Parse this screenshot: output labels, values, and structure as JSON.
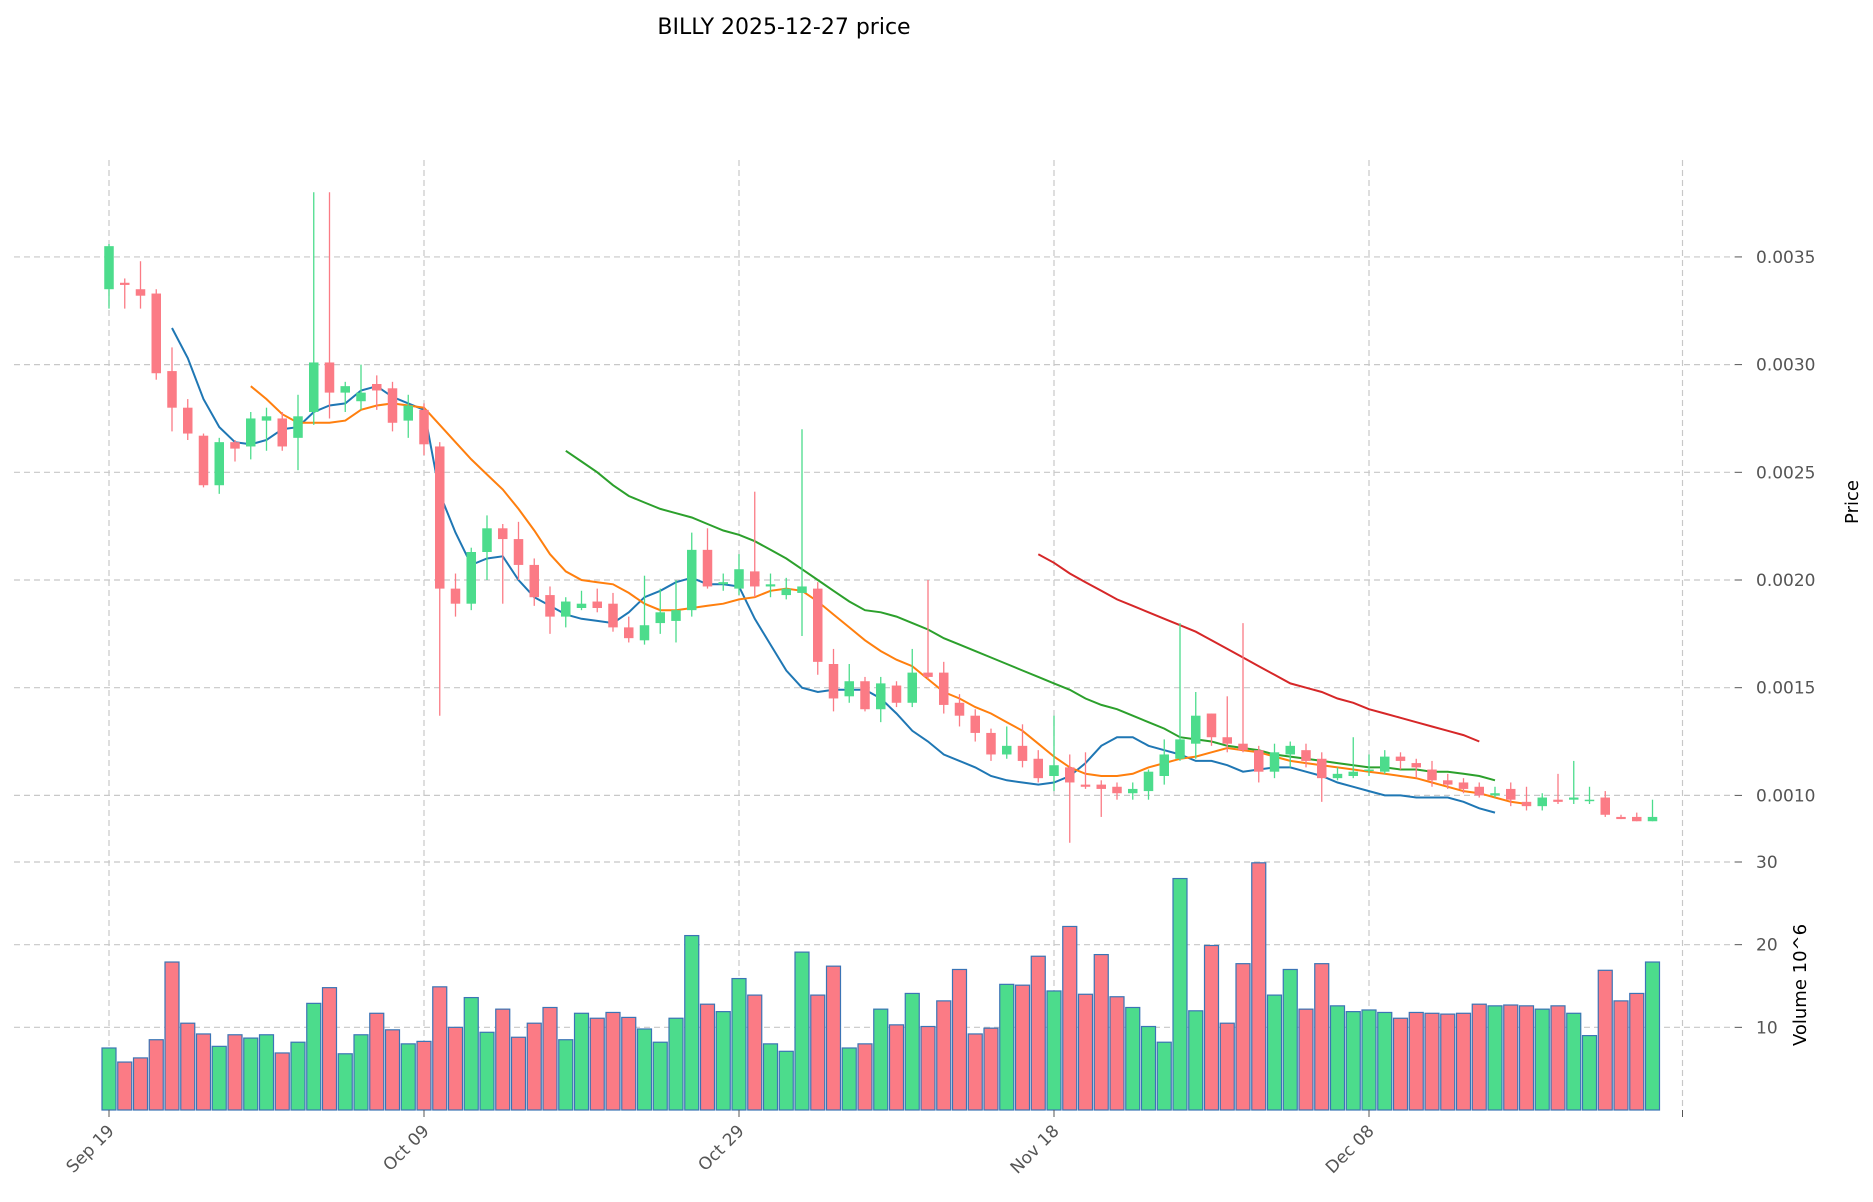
{
  "chart_data": {
    "type": "candlestick",
    "title": "BILLY  2025-12-27  price",
    "price_ylabel": "Price",
    "volume_ylabel": "Volume  10^6",
    "price_ylim": [
      0.0007,
      0.00395
    ],
    "volume_ylim": [
      0,
      30
    ],
    "price_ticks": [
      0.001,
      0.0015,
      0.002,
      0.0025,
      0.003,
      0.0035
    ],
    "price_tick_labels": [
      "0.0010",
      "0.0015",
      "0.0020",
      "0.0025",
      "0.0030",
      "0.0035"
    ],
    "volume_ticks": [
      10,
      20,
      30
    ],
    "volume_tick_labels": [
      "10",
      "20",
      "30"
    ],
    "x_ticks": [
      0,
      20,
      40,
      60,
      80
    ],
    "x_tick_labels": [
      "Sep 19",
      "Oct 09",
      "Oct 29",
      "Nov 18",
      "Dec 08"
    ],
    "colors": {
      "up": "#4cdc8c",
      "down": "#fb7b85",
      "edge": "#3b74b5",
      "ma_short": "#1f77b4",
      "ma_mid": "#ff7f0e",
      "ma_long": "#2ca02c",
      "ma_xlong": "#d62728"
    },
    "candles": [
      [
        0.00335,
        0.00356,
        0.00326,
        0.00355,
        7.5
      ],
      [
        0.00338,
        0.0034,
        0.00326,
        0.00337,
        5.8
      ],
      [
        0.00335,
        0.00348,
        0.00326,
        0.00332,
        6.3
      ],
      [
        0.00333,
        0.00335,
        0.00293,
        0.00296,
        8.5
      ],
      [
        0.00297,
        0.00308,
        0.00269,
        0.0028,
        17.9
      ],
      [
        0.0028,
        0.00284,
        0.00265,
        0.00268,
        10.5
      ],
      [
        0.00267,
        0.00268,
        0.00243,
        0.00244,
        9.2
      ],
      [
        0.00244,
        0.00266,
        0.0024,
        0.00264,
        7.7
      ],
      [
        0.00264,
        0.00265,
        0.00255,
        0.00261,
        9.1
      ],
      [
        0.00262,
        0.00278,
        0.00256,
        0.00275,
        8.7
      ],
      [
        0.00274,
        0.0028,
        0.0026,
        0.00276,
        9.1
      ],
      [
        0.00275,
        0.00278,
        0.0026,
        0.00262,
        6.9
      ],
      [
        0.00266,
        0.00286,
        0.00251,
        0.00276,
        8.2
      ],
      [
        0.00278,
        0.0038,
        0.00272,
        0.00301,
        12.9
      ],
      [
        0.00301,
        0.0038,
        0.00275,
        0.00287,
        14.8
      ],
      [
        0.00287,
        0.00292,
        0.00278,
        0.0029,
        6.8
      ],
      [
        0.00283,
        0.003,
        0.00279,
        0.00287,
        9.1
      ],
      [
        0.00291,
        0.00295,
        0.00279,
        0.00288,
        11.7
      ],
      [
        0.00289,
        0.00292,
        0.00269,
        0.00273,
        9.7
      ],
      [
        0.00274,
        0.00286,
        0.00266,
        0.00281,
        8.0
      ],
      [
        0.00279,
        0.00282,
        0.00258,
        0.00263,
        8.3
      ],
      [
        0.00262,
        0.00264,
        0.00137,
        0.00196,
        14.9
      ],
      [
        0.00196,
        0.00203,
        0.00183,
        0.00189,
        10.0
      ],
      [
        0.00189,
        0.00215,
        0.00186,
        0.00213,
        13.6
      ],
      [
        0.00213,
        0.0023,
        0.002,
        0.00224,
        9.4
      ],
      [
        0.00224,
        0.00226,
        0.00189,
        0.00219,
        12.2
      ],
      [
        0.00219,
        0.00227,
        0.002,
        0.00207,
        8.8
      ],
      [
        0.00207,
        0.0021,
        0.00188,
        0.00192,
        10.5
      ],
      [
        0.00193,
        0.00197,
        0.00175,
        0.00183,
        12.4
      ],
      [
        0.00183,
        0.00192,
        0.00178,
        0.0019,
        8.5
      ],
      [
        0.00187,
        0.00195,
        0.00186,
        0.00189,
        11.7
      ],
      [
        0.0019,
        0.00196,
        0.00185,
        0.00187,
        11.1
      ],
      [
        0.00189,
        0.00194,
        0.00176,
        0.00178,
        11.8
      ],
      [
        0.00178,
        0.00183,
        0.00171,
        0.00173,
        11.2
      ],
      [
        0.00172,
        0.00202,
        0.0017,
        0.00179,
        9.8
      ],
      [
        0.0018,
        0.00196,
        0.00175,
        0.00185,
        8.2
      ],
      [
        0.00181,
        0.002,
        0.00171,
        0.00186,
        11.1
      ],
      [
        0.00186,
        0.00222,
        0.00183,
        0.00214,
        21.1
      ],
      [
        0.00214,
        0.00224,
        0.00196,
        0.00197,
        12.8
      ],
      [
        0.00198,
        0.00203,
        0.00195,
        0.00199,
        11.9
      ],
      [
        0.00196,
        0.00212,
        0.00193,
        0.00205,
        15.9
      ],
      [
        0.00204,
        0.00241,
        0.00192,
        0.00197,
        13.9
      ],
      [
        0.00197,
        0.00203,
        0.00192,
        0.00198,
        8.0
      ],
      [
        0.00193,
        0.00201,
        0.00191,
        0.00196,
        7.1
      ],
      [
        0.00194,
        0.0027,
        0.00174,
        0.00197,
        19.1
      ],
      [
        0.00196,
        0.00199,
        0.00156,
        0.00162,
        13.9
      ],
      [
        0.00161,
        0.00168,
        0.00139,
        0.00145,
        17.4
      ],
      [
        0.00146,
        0.00161,
        0.00143,
        0.00153,
        7.5
      ],
      [
        0.00153,
        0.00155,
        0.00139,
        0.0014,
        8.0
      ],
      [
        0.0014,
        0.00155,
        0.00134,
        0.00152,
        12.2
      ],
      [
        0.00151,
        0.00153,
        0.00141,
        0.00143,
        10.3
      ],
      [
        0.00143,
        0.00168,
        0.00141,
        0.00157,
        14.1
      ],
      [
        0.00157,
        0.002,
        0.00154,
        0.00155,
        10.1
      ],
      [
        0.00157,
        0.00162,
        0.00138,
        0.00142,
        13.2
      ],
      [
        0.00143,
        0.00147,
        0.00132,
        0.00137,
        17.0
      ],
      [
        0.00137,
        0.0014,
        0.00125,
        0.00129,
        9.2
      ],
      [
        0.00129,
        0.00131,
        0.00116,
        0.00119,
        9.9
      ],
      [
        0.00119,
        0.00132,
        0.00117,
        0.00123,
        15.2
      ],
      [
        0.00123,
        0.00133,
        0.00113,
        0.00116,
        15.1
      ],
      [
        0.00117,
        0.00121,
        0.00106,
        0.00108,
        18.6
      ],
      [
        0.00109,
        0.00137,
        0.00102,
        0.00114,
        14.4
      ],
      [
        0.00113,
        0.00119,
        0.00078,
        0.00106,
        22.2
      ],
      [
        0.00105,
        0.0012,
        0.00103,
        0.00104,
        14.0
      ],
      [
        0.00105,
        0.00107,
        0.0009,
        0.00103,
        18.8
      ],
      [
        0.00104,
        0.00106,
        0.00098,
        0.00101,
        13.7
      ],
      [
        0.00101,
        0.00106,
        0.00098,
        0.00103,
        12.4
      ],
      [
        0.00102,
        0.00112,
        0.00098,
        0.00111,
        10.1
      ],
      [
        0.00109,
        0.00126,
        0.00105,
        0.00119,
        8.2
      ],
      [
        0.00117,
        0.0018,
        0.00116,
        0.00126,
        28.0
      ],
      [
        0.00124,
        0.00148,
        0.00117,
        0.00137,
        12.0
      ],
      [
        0.00138,
        0.00138,
        0.00123,
        0.00127,
        19.9
      ],
      [
        0.00127,
        0.00146,
        0.0012,
        0.00124,
        10.5
      ],
      [
        0.00124,
        0.0018,
        0.0012,
        0.00121,
        17.7
      ],
      [
        0.00121,
        0.00123,
        0.00106,
        0.00111,
        29.9
      ],
      [
        0.00111,
        0.00124,
        0.00108,
        0.0012,
        13.9
      ],
      [
        0.00119,
        0.00125,
        0.00113,
        0.00123,
        17.0
      ],
      [
        0.00121,
        0.00124,
        0.00113,
        0.00116,
        12.2
      ],
      [
        0.00117,
        0.0012,
        0.00097,
        0.00108,
        17.7
      ],
      [
        0.00108,
        0.00113,
        0.00107,
        0.0011,
        12.6
      ],
      [
        0.00109,
        0.00127,
        0.00108,
        0.00111,
        11.9
      ],
      [
        0.00112,
        0.00119,
        0.00109,
        0.00112,
        12.1
      ],
      [
        0.00111,
        0.00121,
        0.0011,
        0.00118,
        11.8
      ],
      [
        0.00118,
        0.0012,
        0.00112,
        0.00116,
        11.1
      ],
      [
        0.00115,
        0.00117,
        0.00108,
        0.00113,
        11.8
      ],
      [
        0.00112,
        0.00116,
        0.00104,
        0.00107,
        11.7
      ],
      [
        0.00107,
        0.0011,
        0.00103,
        0.00105,
        11.6
      ],
      [
        0.00106,
        0.00108,
        0.00101,
        0.00103,
        11.7
      ],
      [
        0.00104,
        0.00106,
        0.00099,
        0.001,
        12.8
      ],
      [
        0.001,
        0.00104,
        0.00099,
        0.00101,
        12.6
      ],
      [
        0.00103,
        0.00106,
        0.00095,
        0.00098,
        12.7
      ],
      [
        0.00097,
        0.00104,
        0.00093,
        0.00095,
        12.6
      ],
      [
        0.00095,
        0.00101,
        0.00093,
        0.00099,
        12.2
      ],
      [
        0.00098,
        0.0011,
        0.00096,
        0.00097,
        12.6
      ],
      [
        0.00098,
        0.00116,
        0.00096,
        0.00099,
        11.7
      ],
      [
        0.00098,
        0.00104,
        0.00096,
        0.00098,
        9.0
      ],
      [
        0.00099,
        0.00102,
        0.0009,
        0.00091,
        16.9
      ],
      [
        0.0009,
        0.00091,
        0.00089,
        0.00089,
        13.2
      ],
      [
        0.0009,
        0.00092,
        0.00088,
        0.00088,
        14.1
      ],
      [
        0.00088,
        0.00098,
        0.00088,
        0.0009,
        17.9
      ]
    ],
    "ma_lines": [
      {
        "name": "ma_short",
        "start": 4,
        "values": [
          0.00317,
          0.00303,
          0.00284,
          0.00271,
          0.00264,
          0.00263,
          0.00265,
          0.0027,
          0.00271,
          0.00278,
          0.00281,
          0.00282,
          0.00288,
          0.0029,
          0.00285,
          0.00282,
          0.00279,
          0.0024,
          0.00222,
          0.00207,
          0.0021,
          0.00211,
          0.002,
          0.00192,
          0.00188,
          0.00184,
          0.00182,
          0.00181,
          0.0018,
          0.00185,
          0.00192,
          0.00195,
          0.00199,
          0.00201,
          0.00198,
          0.00198,
          0.00197,
          0.00182,
          0.0017,
          0.00158,
          0.0015,
          0.00148,
          0.00149,
          0.00149,
          0.00149,
          0.00145,
          0.00138,
          0.0013,
          0.00125,
          0.00119,
          0.00116,
          0.00113,
          0.00109,
          0.00107,
          0.00106,
          0.00105,
          0.00106,
          0.00109,
          0.00115,
          0.00123,
          0.00127,
          0.00127,
          0.00123,
          0.00121,
          0.00119,
          0.00116,
          0.00116,
          0.00114,
          0.00111,
          0.00112,
          0.00113,
          0.00113,
          0.00111,
          0.00109,
          0.00106,
          0.00104,
          0.00102,
          0.001,
          0.001,
          0.00099,
          0.00099,
          0.00099,
          0.00097,
          0.00094,
          0.00092
        ]
      },
      {
        "name": "ma_mid",
        "start": 9,
        "values": [
          0.0029,
          0.00284,
          0.00277,
          0.00273,
          0.00273,
          0.00273,
          0.00274,
          0.00279,
          0.00281,
          0.00282,
          0.00281,
          0.0028,
          0.00272,
          0.00264,
          0.00256,
          0.00249,
          0.00242,
          0.00233,
          0.00223,
          0.00212,
          0.00204,
          0.002,
          0.00199,
          0.00198,
          0.00194,
          0.00189,
          0.00186,
          0.00186,
          0.00187,
          0.00188,
          0.00189,
          0.00191,
          0.00192,
          0.00195,
          0.00196,
          0.00195,
          0.0019,
          0.00184,
          0.00178,
          0.00172,
          0.00167,
          0.00163,
          0.0016,
          0.00154,
          0.00148,
          0.00145,
          0.00141,
          0.00138,
          0.00134,
          0.0013,
          0.00124,
          0.00118,
          0.00113,
          0.0011,
          0.00109,
          0.00109,
          0.0011,
          0.00113,
          0.00115,
          0.00117,
          0.00118,
          0.0012,
          0.00122,
          0.00121,
          0.0012,
          0.00118,
          0.00116,
          0.00115,
          0.00114,
          0.00113,
          0.00112,
          0.00111,
          0.0011,
          0.00109,
          0.00108,
          0.00106,
          0.00104,
          0.00102,
          0.00101,
          0.00099,
          0.00097,
          0.00096
        ]
      },
      {
        "name": "ma_long",
        "start": 29,
        "values": [
          0.0026,
          0.00255,
          0.0025,
          0.00244,
          0.00239,
          0.00236,
          0.00233,
          0.00231,
          0.00229,
          0.00226,
          0.00223,
          0.00221,
          0.00218,
          0.00214,
          0.0021,
          0.00205,
          0.002,
          0.00195,
          0.0019,
          0.00186,
          0.00185,
          0.00183,
          0.0018,
          0.00177,
          0.00173,
          0.0017,
          0.00167,
          0.00164,
          0.00161,
          0.00158,
          0.00155,
          0.00152,
          0.00149,
          0.00145,
          0.00142,
          0.0014,
          0.00137,
          0.00134,
          0.00131,
          0.00127,
          0.00126,
          0.00125,
          0.00123,
          0.00122,
          0.00121,
          0.00119,
          0.00118,
          0.00117,
          0.00116,
          0.00115,
          0.00114,
          0.00113,
          0.00113,
          0.00112,
          0.00112,
          0.00111,
          0.00111,
          0.0011,
          0.00109,
          0.00107
        ]
      },
      {
        "name": "ma_xlong",
        "start": 59,
        "values": [
          0.00212,
          0.00208,
          0.00203,
          0.00199,
          0.00195,
          0.00191,
          0.00188,
          0.00185,
          0.00182,
          0.00179,
          0.00176,
          0.00172,
          0.00168,
          0.00164,
          0.0016,
          0.00156,
          0.00152,
          0.0015,
          0.00148,
          0.00145,
          0.00143,
          0.0014,
          0.00138,
          0.00136,
          0.00134,
          0.00132,
          0.0013,
          0.00128,
          0.00125
        ]
      }
    ]
  }
}
